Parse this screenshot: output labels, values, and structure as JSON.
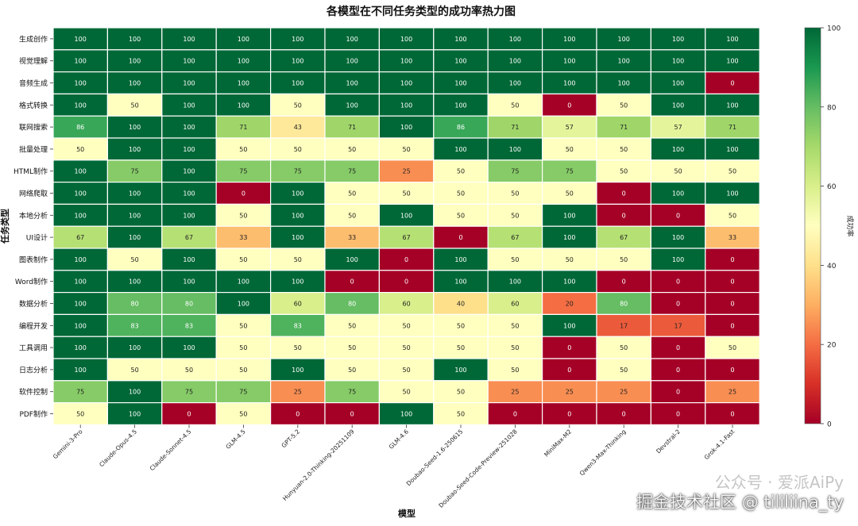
{
  "chart_data": {
    "type": "heatmap",
    "title": "各模型在不同任务类型的成功率热力图",
    "xlabel": "模型",
    "ylabel": "任务类型",
    "colorbar_label": "成功率",
    "colorbar_range": [
      0,
      100
    ],
    "colorbar_ticks": [
      0,
      20,
      40,
      60,
      80,
      100
    ],
    "colormap": "RdYlGn",
    "colors": {
      "low": "#a50026",
      "mid": "#ffffbf",
      "high": "#006837"
    },
    "models": [
      "Gemini-3-Pro",
      "Claude-Opus-4.5",
      "Claude-Sonnet-4.5",
      "GLM-4.5",
      "GPT-5.2",
      "Hunyuan-2.0-Thinking-20251109",
      "GLM-4.6",
      "Doubao-Seed-1.6-250615",
      "Doubao-Seed-Code-Preview-251028",
      "MiniMax-M2",
      "Qwen3-Max-Thinking",
      "Devstral-2",
      "Grok-4.1-Fast"
    ],
    "tasks": [
      "生成创作",
      "视觉理解",
      "音频生成",
      "格式转换",
      "联网搜索",
      "批量处理",
      "HTML制作",
      "网络爬取",
      "本地分析",
      "UI设计",
      "图表制作",
      "Word制作",
      "数据分析",
      "编程开发",
      "工具调用",
      "日志分析",
      "软件控制",
      "PDF制作"
    ],
    "values": [
      [
        100,
        100,
        100,
        100,
        100,
        100,
        100,
        100,
        100,
        100,
        100,
        100,
        100
      ],
      [
        100,
        100,
        100,
        100,
        100,
        100,
        100,
        100,
        100,
        100,
        100,
        100,
        100
      ],
      [
        100,
        100,
        100,
        100,
        100,
        100,
        100,
        100,
        100,
        100,
        100,
        100,
        0
      ],
      [
        100,
        50,
        100,
        100,
        50,
        100,
        100,
        100,
        50,
        0,
        50,
        100,
        100
      ],
      [
        86,
        100,
        100,
        71,
        43,
        71,
        100,
        86,
        71,
        57,
        71,
        57,
        71
      ],
      [
        50,
        100,
        100,
        50,
        50,
        50,
        50,
        100,
        100,
        50,
        50,
        100,
        100
      ],
      [
        100,
        75,
        100,
        75,
        75,
        75,
        25,
        50,
        75,
        75,
        50,
        50,
        50
      ],
      [
        100,
        100,
        100,
        0,
        100,
        50,
        50,
        50,
        50,
        50,
        0,
        100,
        100
      ],
      [
        100,
        100,
        100,
        50,
        100,
        50,
        100,
        50,
        50,
        100,
        0,
        0,
        50
      ],
      [
        67,
        100,
        67,
        33,
        100,
        33,
        67,
        0,
        67,
        100,
        67,
        100,
        33
      ],
      [
        100,
        50,
        100,
        50,
        50,
        100,
        0,
        100,
        50,
        50,
        50,
        100,
        0
      ],
      [
        100,
        100,
        100,
        100,
        100,
        0,
        0,
        100,
        100,
        100,
        0,
        0,
        0
      ],
      [
        100,
        80,
        80,
        100,
        60,
        80,
        60,
        40,
        60,
        20,
        80,
        0,
        0
      ],
      [
        100,
        83,
        83,
        50,
        83,
        50,
        50,
        50,
        50,
        100,
        17,
        17,
        0
      ],
      [
        100,
        100,
        100,
        50,
        50,
        50,
        50,
        50,
        50,
        0,
        50,
        0,
        50
      ],
      [
        100,
        50,
        50,
        50,
        100,
        50,
        50,
        100,
        50,
        0,
        50,
        0,
        0
      ],
      [
        75,
        100,
        75,
        75,
        25,
        75,
        50,
        50,
        25,
        25,
        25,
        0,
        25
      ],
      [
        50,
        100,
        0,
        50,
        0,
        0,
        100,
        50,
        0,
        0,
        0,
        0,
        0
      ]
    ]
  },
  "watermark": {
    "line1": "公众号 · 爱派AiPy",
    "line2": "掘金技术社区 @ tililiina_ty"
  }
}
